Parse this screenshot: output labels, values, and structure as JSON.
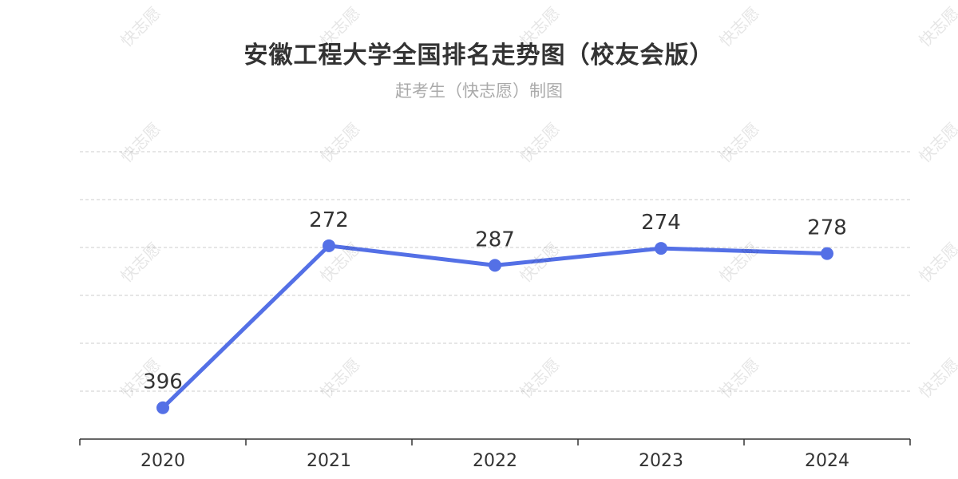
{
  "title": "安徽工程大学全国排名走势图（校友会版）",
  "subtitle": "赶考生（快志愿）制图",
  "watermark": "快志愿",
  "colors": {
    "line": "#5470e6",
    "grid": "#cccccc",
    "axis": "#333333",
    "label": "#333333"
  },
  "chart_data": {
    "type": "line",
    "title": "安徽工程大学全国排名走势图（校友会版）",
    "subtitle": "赶考生（快志愿）制图",
    "categories": [
      "2020",
      "2021",
      "2022",
      "2023",
      "2024"
    ],
    "series": [
      {
        "values": [
          396,
          272,
          287,
          274,
          278
        ]
      }
    ],
    "y_inverted": true,
    "ylim": [
      200,
      420
    ],
    "grid": true,
    "xlabel": "",
    "ylabel": ""
  }
}
